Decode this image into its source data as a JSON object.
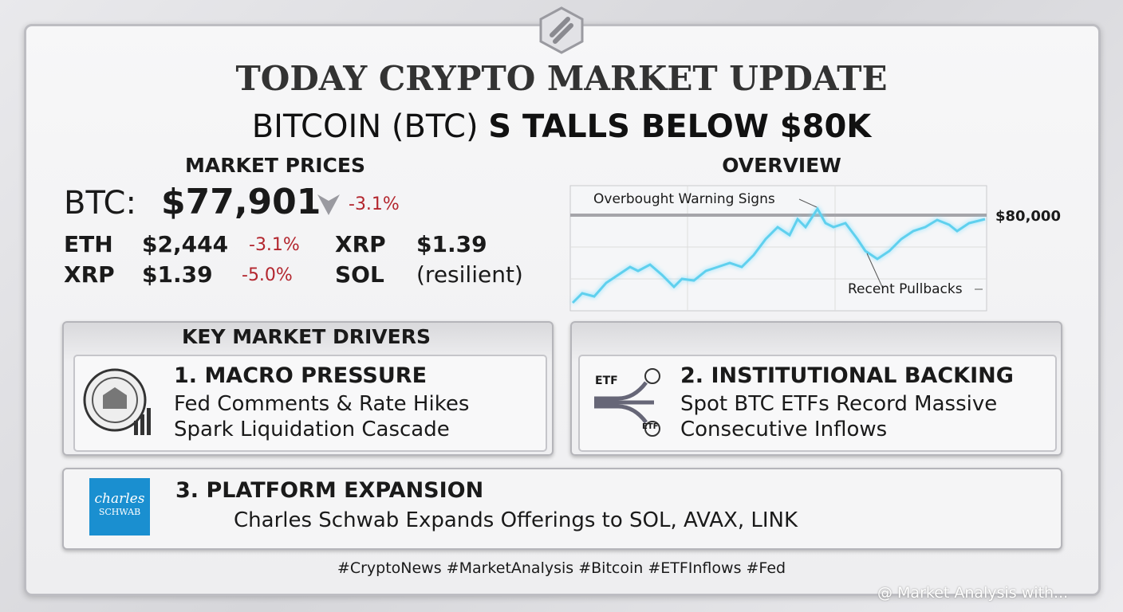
{
  "header": {
    "title": "TODAY CRYPTO MARKET UPDATE",
    "subtitle_plain": "BITCOIN (BTC)",
    "subtitle_bold": "S TALLS BELOW $80K"
  },
  "market_prices": {
    "heading": "MARKET PRICES",
    "btc": {
      "label": "BTC:",
      "price": "$77,901",
      "change": "-3.1%"
    },
    "rows": [
      [
        {
          "symbol": "ETH",
          "price": "$2,444",
          "change": "-3.1%"
        },
        {
          "symbol": "XRP",
          "price": "$1.39"
        }
      ],
      [
        {
          "symbol": "XRP",
          "price": "$1.39",
          "change": "-5.0%"
        },
        {
          "symbol": "SOL",
          "price": "(resilient)"
        }
      ]
    ]
  },
  "overview": {
    "heading": "OVERVIEW",
    "annotations": [
      "Overbought Warning Signs",
      "Recent Pullbacks"
    ],
    "level_label": "$80,000"
  },
  "drivers": {
    "heading": "KEY MARKET DRIVERS",
    "items": [
      {
        "title": "1. MACRO PRESSURE",
        "lines": [
          "Fed Comments & Rate Hikes",
          "Spark Liquidation Cascade"
        ]
      },
      {
        "title": "2. INSTITUTIONAL BACKING",
        "lines": [
          "Spot BTC ETFs Record Massive",
          "Consecutive Inflows"
        ],
        "icon_labels": [
          "ETF",
          "ETF"
        ]
      },
      {
        "title": "3. PLATFORM EXPANSION",
        "lines": [
          "Charles Schwab Expands Offerings to SOL, AVAX, LINK"
        ],
        "logo": [
          "charles",
          "SCHWAB"
        ]
      }
    ]
  },
  "hashtags": "#CryptoNews #MarketAnalysis #Bitcoin #ETFInflows #Fed",
  "watermark": "@ Market Analysis with..."
}
